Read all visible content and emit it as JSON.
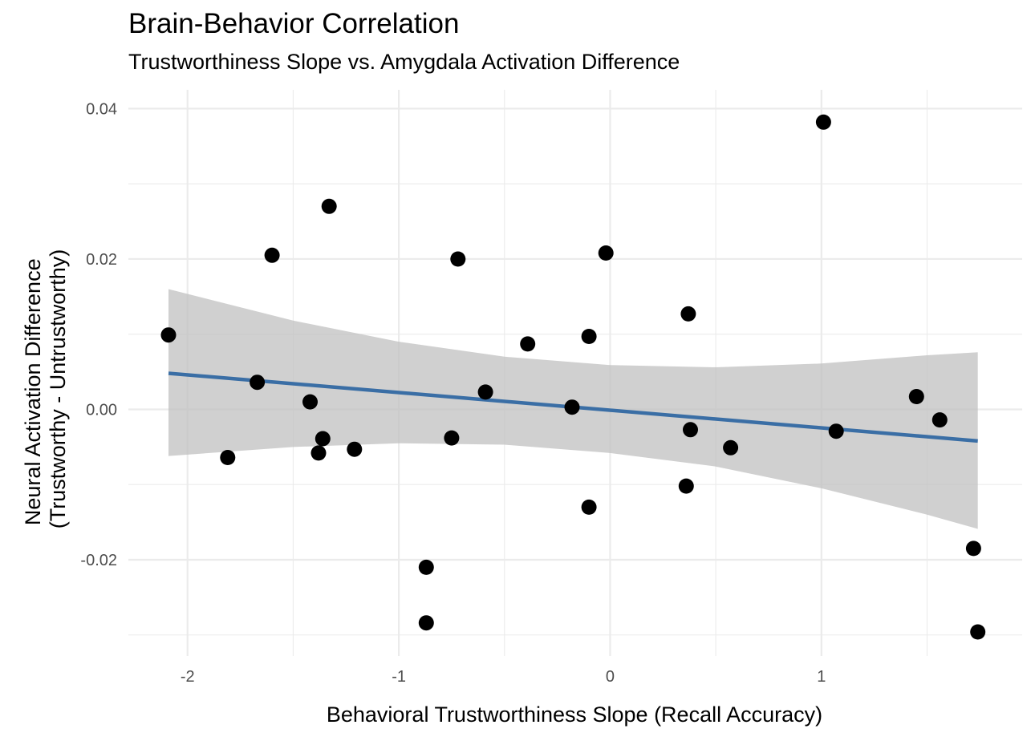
{
  "chart_data": {
    "type": "scatter",
    "title": "Brain-Behavior Correlation",
    "subtitle": "Trustworthiness Slope vs. Amygdala Activation Difference",
    "xlabel": "Behavioral Trustworthiness Slope (Recall Accuracy)",
    "ylabel_lines": [
      "Neural Activation Difference",
      "(Trustworthy - Untrustworthy)"
    ],
    "xlim": [
      -2.28,
      1.95
    ],
    "ylim": [
      -0.0328,
      0.0425
    ],
    "x_ticks": [
      -2,
      -1,
      0,
      1
    ],
    "x_tick_labels": [
      "-2",
      "-1",
      "0",
      "1"
    ],
    "y_ticks": [
      -0.02,
      0.0,
      0.02,
      0.04
    ],
    "y_tick_labels": [
      "-0.02",
      "0.00",
      "0.02",
      "0.04"
    ],
    "grid": true,
    "colors": {
      "points": "#000000",
      "fit_line": "#3a6ea5",
      "confidence_band": "#bebebe",
      "grid": "#ebebeb"
    },
    "points": [
      {
        "x": -2.09,
        "y": 0.0099
      },
      {
        "x": -1.81,
        "y": -0.0064
      },
      {
        "x": -1.67,
        "y": 0.0036
      },
      {
        "x": -1.6,
        "y": 0.0205
      },
      {
        "x": -1.42,
        "y": 0.001
      },
      {
        "x": -1.38,
        "y": -0.0058
      },
      {
        "x": -1.36,
        "y": -0.0039
      },
      {
        "x": -1.33,
        "y": 0.027
      },
      {
        "x": -1.21,
        "y": -0.0053
      },
      {
        "x": -0.87,
        "y": -0.021
      },
      {
        "x": -0.87,
        "y": -0.0284
      },
      {
        "x": -0.75,
        "y": -0.0038
      },
      {
        "x": -0.72,
        "y": 0.02
      },
      {
        "x": -0.59,
        "y": 0.0023
      },
      {
        "x": -0.39,
        "y": 0.0087
      },
      {
        "x": -0.18,
        "y": 0.0003
      },
      {
        "x": -0.1,
        "y": 0.0097
      },
      {
        "x": -0.1,
        "y": -0.013
      },
      {
        "x": -0.02,
        "y": 0.0208
      },
      {
        "x": 0.36,
        "y": -0.0102
      },
      {
        "x": 0.37,
        "y": 0.0127
      },
      {
        "x": 0.38,
        "y": -0.0027
      },
      {
        "x": 0.57,
        "y": -0.0051
      },
      {
        "x": 1.01,
        "y": 0.0382
      },
      {
        "x": 1.07,
        "y": -0.0029
      },
      {
        "x": 1.45,
        "y": 0.0017
      },
      {
        "x": 1.56,
        "y": -0.0014
      },
      {
        "x": 1.72,
        "y": -0.0185
      },
      {
        "x": 1.74,
        "y": -0.0296
      }
    ],
    "fit_line": {
      "x": [
        -2.09,
        1.74
      ],
      "y": [
        0.0048,
        -0.0042
      ]
    },
    "confidence_band": {
      "x": [
        -2.09,
        -1.5,
        -1.0,
        -0.5,
        0.0,
        0.5,
        1.0,
        1.5,
        1.74
      ],
      "upper": [
        0.016,
        0.0118,
        0.009,
        0.007,
        0.0059,
        0.0056,
        0.0061,
        0.0072,
        0.0076
      ],
      "lower": [
        -0.0062,
        -0.005,
        -0.0045,
        -0.0047,
        -0.0058,
        -0.0076,
        -0.0105,
        -0.014,
        -0.0159
      ]
    }
  }
}
